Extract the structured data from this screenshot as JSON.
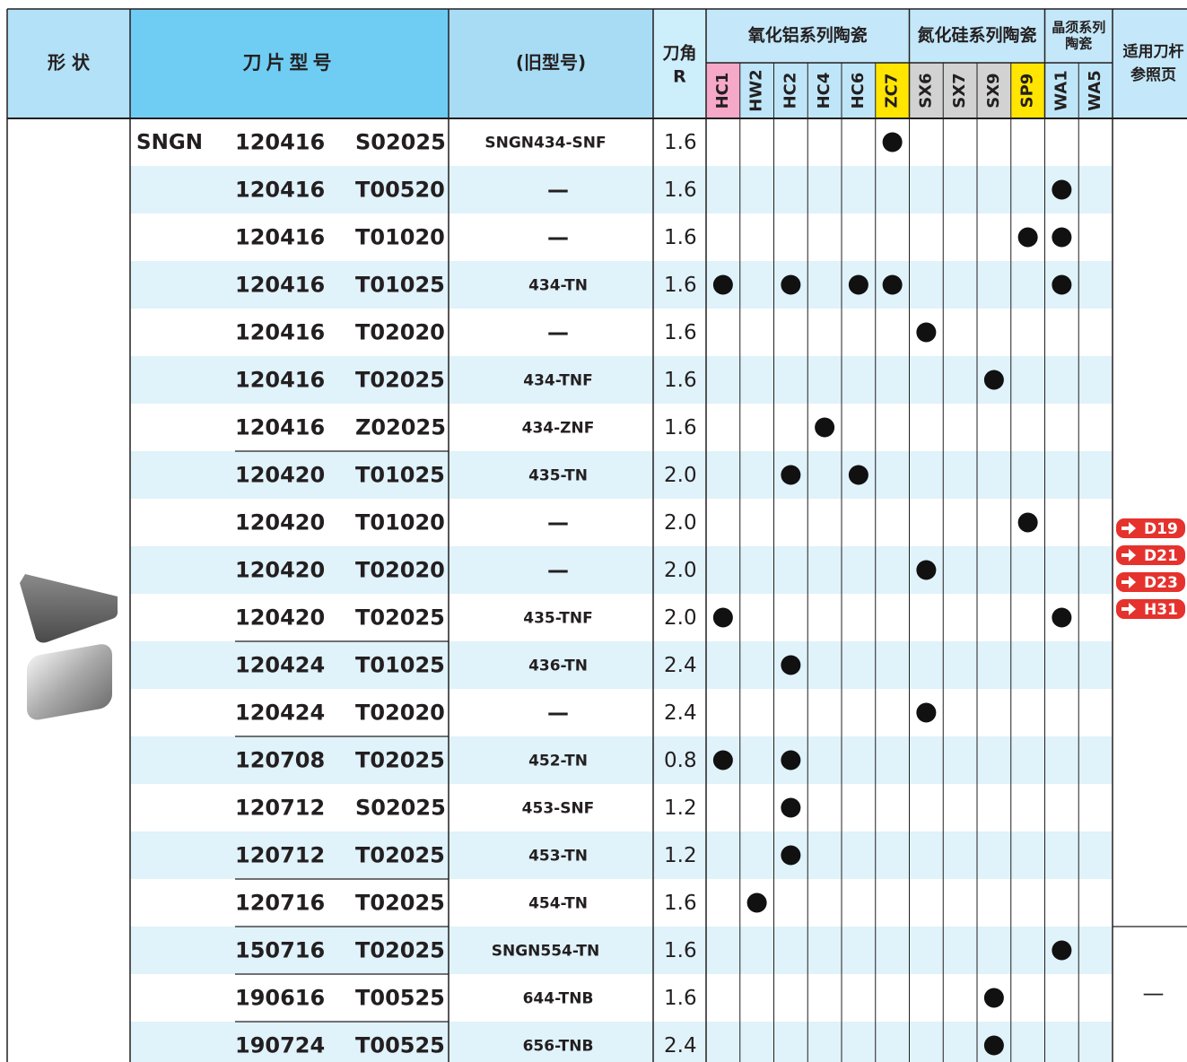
{
  "header": {
    "shape": "形 状",
    "model": "刀片型号",
    "old_model": "(旧型号)",
    "radius": [
      "刀角",
      "R"
    ],
    "groups": [
      {
        "label": [
          "氧化铝系列陶瓷"
        ]
      },
      {
        "label": [
          "氮化硅系列陶瓷"
        ]
      },
      {
        "label": [
          "晶须系列",
          "陶瓷"
        ]
      }
    ],
    "reference": [
      "适用刀杆",
      "参照页"
    ]
  },
  "grades": [
    {
      "name": "HC1",
      "color": "#f5a8c8"
    },
    {
      "name": "HW2",
      "color": "#bfe6f8"
    },
    {
      "name": "HC2",
      "color": "#bfe6f8"
    },
    {
      "name": "HC4",
      "color": "#bfe6f8"
    },
    {
      "name": "HC6",
      "color": "#bfe6f8"
    },
    {
      "name": "ZC7",
      "color": "#ffe500"
    },
    {
      "name": "SX6",
      "color": "#d2d2d2"
    },
    {
      "name": "SX7",
      "color": "#d2d2d2"
    },
    {
      "name": "SX9",
      "color": "#d2d2d2"
    },
    {
      "name": "SP9",
      "color": "#ffe500"
    },
    {
      "name": "WA1",
      "color": "#bfe6f8"
    },
    {
      "name": "WA5",
      "color": "#bfe6f8"
    }
  ],
  "rows": [
    {
      "prefix": "SNGN",
      "size": "120416",
      "code": "S02025",
      "old": "SNGN434-SNF",
      "r": "1.6",
      "dots": [
        5
      ]
    },
    {
      "size": "120416",
      "code": "T00520",
      "old": "—",
      "r": "1.6",
      "dots": [
        10
      ]
    },
    {
      "size": "120416",
      "code": "T01020",
      "old": "—",
      "r": "1.6",
      "dots": [
        9,
        10
      ]
    },
    {
      "size": "120416",
      "code": "T01025",
      "old": "434-TN",
      "r": "1.6",
      "dots": [
        0,
        2,
        4,
        5,
        10
      ]
    },
    {
      "size": "120416",
      "code": "T02020",
      "old": "—",
      "r": "1.6",
      "dots": [
        6
      ]
    },
    {
      "size": "120416",
      "code": "T02025",
      "old": "434-TNF",
      "r": "1.6",
      "dots": [
        8
      ]
    },
    {
      "size": "120416",
      "code": "Z02025",
      "old": "434-ZNF",
      "r": "1.6",
      "dots": [
        3
      ]
    },
    {
      "size": "120420",
      "code": "T01025",
      "old": "435-TN",
      "r": "2.0",
      "dots": [
        2,
        4
      ]
    },
    {
      "size": "120420",
      "code": "T01020",
      "old": "—",
      "r": "2.0",
      "dots": [
        9
      ]
    },
    {
      "size": "120420",
      "code": "T02020",
      "old": "—",
      "r": "2.0",
      "dots": [
        6
      ]
    },
    {
      "size": "120420",
      "code": "T02025",
      "old": "435-TNF",
      "r": "2.0",
      "dots": [
        0,
        10
      ]
    },
    {
      "size": "120424",
      "code": "T01025",
      "old": "436-TN",
      "r": "2.4",
      "dots": [
        2
      ]
    },
    {
      "size": "120424",
      "code": "T02020",
      "old": "—",
      "r": "2.4",
      "dots": [
        6
      ]
    },
    {
      "size": "120708",
      "code": "T02025",
      "old": "452-TN",
      "r": "0.8",
      "dots": [
        0,
        2
      ]
    },
    {
      "size": "120712",
      "code": "S02025",
      "old": "453-SNF",
      "r": "1.2",
      "dots": [
        2
      ]
    },
    {
      "size": "120712",
      "code": "T02025",
      "old": "453-TN",
      "r": "1.2",
      "dots": [
        2
      ]
    },
    {
      "size": "120716",
      "code": "T02025",
      "old": "454-TN",
      "r": "1.6",
      "dots": [
        1
      ]
    },
    {
      "size": "150716",
      "code": "T02025",
      "old": "SNGN554-TN",
      "r": "1.6",
      "dots": [
        10
      ]
    },
    {
      "size": "190616",
      "code": "T00525",
      "old": "644-TNB",
      "r": "1.6",
      "dots": [
        8
      ]
    },
    {
      "size": "190724",
      "code": "T00525",
      "old": "656-TNB",
      "r": "2.4",
      "dots": [
        8
      ]
    }
  ],
  "references": [
    "D19",
    "D21",
    "D23",
    "H31"
  ],
  "reference_none": "—"
}
